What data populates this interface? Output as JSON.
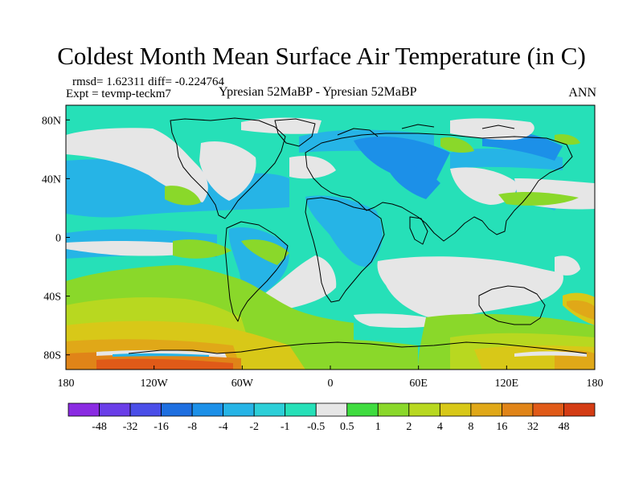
{
  "title": "Coldest Month Mean Surface Air Temperature (in C)",
  "stats_line": "rmsd= 1.62311 diff= -0.224764",
  "experiment_line": "Expt = tevmp-teckm7",
  "experiment_title": "Ypresian  52MaBP - Ypresian  52MaBP",
  "period": "ANN",
  "map": {
    "projection": "cylindrical equidistant",
    "lon_range": [
      -180,
      180
    ],
    "lat_range": [
      -90,
      90
    ],
    "lon_ticks": [
      {
        "value": -180,
        "label": "180"
      },
      {
        "value": -120,
        "label": "120W"
      },
      {
        "value": -60,
        "label": "60W"
      },
      {
        "value": 0,
        "label": "0"
      },
      {
        "value": 60,
        "label": "60E"
      },
      {
        "value": 120,
        "label": "120E"
      },
      {
        "value": 180,
        "label": "180"
      }
    ],
    "lat_ticks": [
      {
        "value": 80,
        "label": "80N"
      },
      {
        "value": 40,
        "label": "40N"
      },
      {
        "value": 0,
        "label": "0"
      },
      {
        "value": -40,
        "label": "40S"
      },
      {
        "value": -80,
        "label": "80S"
      }
    ]
  },
  "colorbar": {
    "colors": [
      "#8a2be2",
      "#6a3ee8",
      "#4a4ee8",
      "#1e6fe0",
      "#1c90e8",
      "#26b4e6",
      "#2ccfd8",
      "#26e0b8",
      "#e6e6e6",
      "#3fdc3f",
      "#8ad82a",
      "#b8d820",
      "#d8c818",
      "#e0a818",
      "#e08418",
      "#e05a18",
      "#d43c14"
    ],
    "labels": [
      "-48",
      "-32",
      "-16",
      "-8",
      "-4",
      "-2",
      "-1",
      "-0.5",
      "0.5",
      "1",
      "2",
      "4",
      "8",
      "16",
      "32",
      "48"
    ]
  },
  "legend_colors": {
    "neutral": "#e6e6e6",
    "negative_light": "#26e0b8",
    "negative_mid": "#26b4e6",
    "negative_strong": "#1c90e8",
    "positive_light": "#8ad82a",
    "positive_mid": "#b8d820",
    "positive_strong": "#e0a818",
    "positive_extreme": "#e05a18"
  }
}
